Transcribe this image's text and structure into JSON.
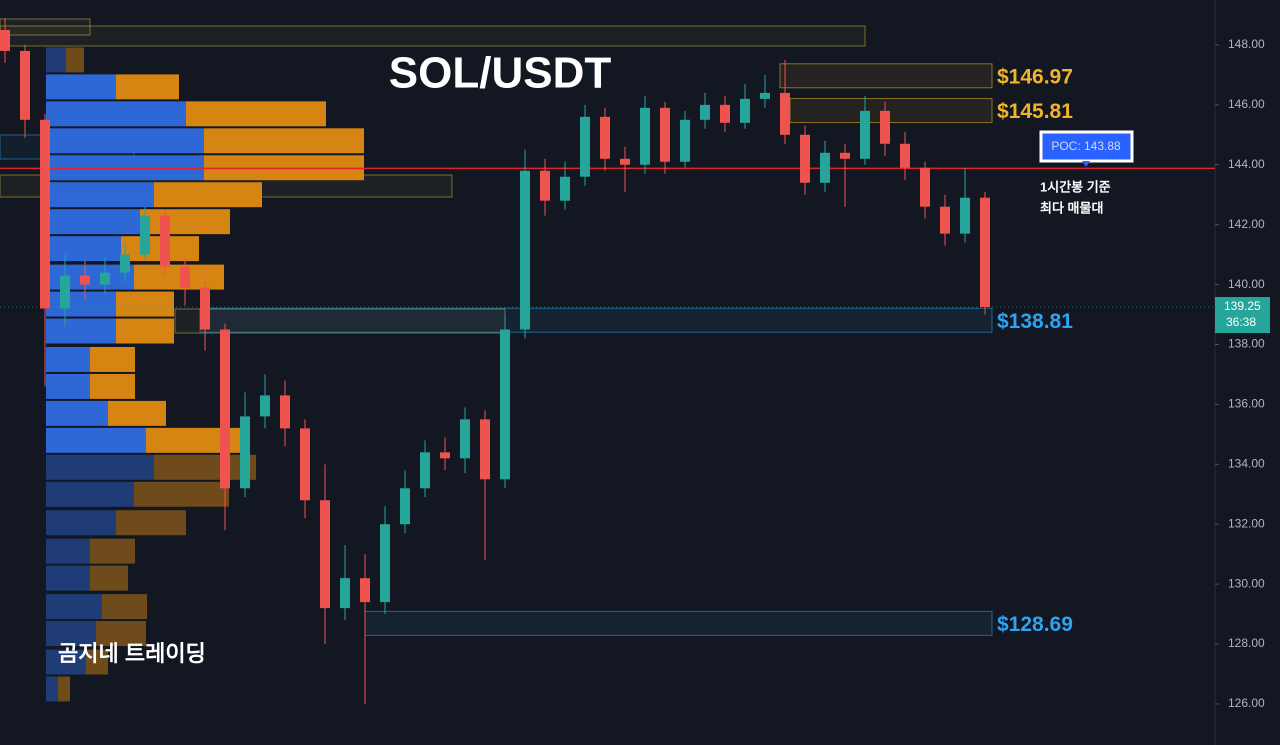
{
  "chart_data": {
    "type": "candlestick",
    "title": "SOL/USDT",
    "watermark": "곰지네 트레이딩",
    "ylim": [
      124.63,
      149.5
    ],
    "yticks": [
      {
        "value": 126,
        "label": "126.00"
      },
      {
        "value": 128,
        "label": "128.00"
      },
      {
        "value": 130,
        "label": "130.00"
      },
      {
        "value": 132,
        "label": "132.00"
      },
      {
        "value": 134,
        "label": "134.00"
      },
      {
        "value": 136,
        "label": "136.00"
      },
      {
        "value": 138,
        "label": "138.00"
      },
      {
        "value": 140,
        "label": "140.00"
      },
      {
        "value": 142,
        "label": "142.00"
      },
      {
        "value": 144,
        "label": "144.00"
      },
      {
        "value": 146,
        "label": "146.00"
      },
      {
        "value": 148,
        "label": "148.00"
      }
    ],
    "up_color": "#26a69a",
    "down_color": "#ef5350",
    "candles": {
      "open": [
        148.5,
        147.8,
        145.5,
        139.2,
        140.3,
        140.0,
        140.4,
        141.0,
        142.3,
        140.6,
        139.9,
        138.5,
        133.2,
        135.6,
        136.3,
        135.2,
        132.8,
        129.2,
        130.2,
        129.4,
        132.0,
        133.2,
        134.4,
        134.2,
        135.5,
        133.5,
        138.5,
        143.8,
        142.8,
        143.6,
        145.6,
        144.2,
        144.0,
        145.9,
        144.1,
        145.5,
        146.0,
        145.4,
        146.2,
        146.4,
        145.0,
        143.4,
        144.4,
        144.2,
        145.8,
        144.7,
        143.9,
        142.6,
        141.7,
        142.9
      ],
      "high": [
        148.9,
        148.0,
        145.7,
        141.0,
        140.8,
        140.9,
        141.4,
        142.6,
        142.5,
        140.9,
        140.1,
        138.7,
        136.4,
        137.0,
        136.8,
        135.5,
        134.0,
        131.3,
        131.0,
        132.6,
        133.8,
        134.8,
        134.9,
        135.9,
        135.8,
        139.0,
        144.5,
        144.2,
        144.1,
        146.0,
        145.9,
        144.6,
        146.3,
        146.1,
        145.8,
        146.4,
        146.3,
        146.7,
        147.0,
        147.5,
        145.3,
        144.8,
        144.7,
        146.3,
        146.1,
        145.1,
        144.1,
        143.0,
        143.9,
        143.1
      ],
      "low": [
        147.4,
        144.9,
        136.6,
        138.6,
        139.5,
        139.7,
        140.1,
        140.8,
        140.3,
        139.3,
        137.8,
        131.8,
        132.9,
        135.2,
        134.6,
        132.2,
        128.0,
        128.8,
        126.0,
        129.0,
        131.7,
        132.9,
        133.8,
        133.7,
        130.8,
        133.2,
        138.2,
        142.3,
        142.5,
        143.3,
        143.8,
        143.1,
        143.7,
        143.7,
        143.9,
        145.2,
        145.1,
        145.2,
        145.9,
        144.7,
        143.0,
        143.1,
        142.6,
        144.0,
        144.3,
        143.5,
        142.2,
        141.3,
        141.4,
        139.0
      ],
      "close": [
        147.8,
        145.5,
        139.2,
        140.3,
        140.0,
        140.4,
        141.0,
        142.3,
        140.6,
        139.9,
        138.5,
        133.2,
        135.6,
        136.3,
        135.2,
        132.8,
        129.2,
        130.2,
        129.4,
        132.0,
        133.2,
        134.4,
        134.2,
        135.5,
        133.5,
        138.5,
        143.8,
        142.8,
        143.6,
        145.6,
        144.2,
        144.0,
        145.9,
        144.1,
        145.5,
        146.0,
        145.4,
        146.2,
        146.4,
        145.0,
        143.4,
        144.4,
        144.2,
        145.8,
        144.7,
        143.9,
        142.6,
        141.7,
        142.9,
        139.25
      ]
    },
    "volume_profile": {
      "prices": [
        147.5,
        146.6,
        145.7,
        144.8,
        143.9,
        143.0,
        142.1,
        141.2,
        140.25,
        139.35,
        138.45,
        137.5,
        136.6,
        135.7,
        134.8,
        133.9,
        133.0,
        132.05,
        131.1,
        130.2,
        129.25,
        128.35,
        127.4,
        126.5
      ],
      "buy": [
        20,
        70,
        140,
        158,
        158,
        108,
        94,
        75,
        88,
        70,
        70,
        44,
        44,
        62,
        100,
        108,
        88,
        70,
        44,
        44,
        56,
        50,
        40,
        12
      ],
      "sell": [
        18,
        63,
        140,
        160,
        160,
        108,
        90,
        78,
        90,
        58,
        58,
        45,
        45,
        58,
        95,
        102,
        95,
        70,
        45,
        38,
        45,
        50,
        22,
        12
      ],
      "buy_color": "#2f6be0",
      "sell_color": "#e08a12",
      "value_area": [
        134.3,
        147.2
      ]
    },
    "levels": {
      "values": [
        146.97,
        145.81,
        138.81,
        128.69
      ],
      "value_labels": [
        "$146.97",
        "$145.81",
        "$138.81",
        "$128.69"
      ],
      "colors": [
        "#f0b429",
        "#f0b429",
        "#2ea3f2",
        "#2ea3f2"
      ]
    },
    "poc": {
      "value": 143.88,
      "label": "POC: 143.88",
      "color": "#e0242b",
      "note": [
        "1시간봉 기준",
        "최다 매물대"
      ]
    },
    "last_price": 139.25,
    "countdown": "36:38"
  }
}
